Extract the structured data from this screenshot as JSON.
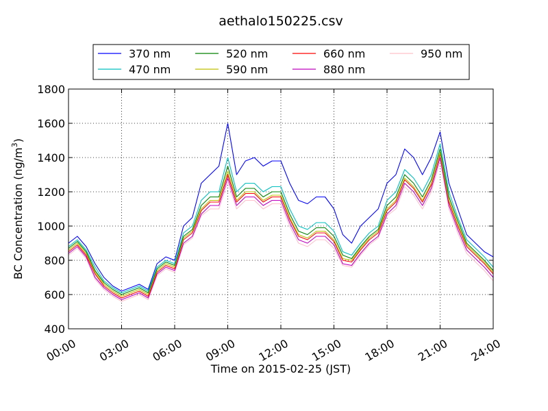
{
  "chart_data": {
    "type": "line",
    "title": "aethalo150225.csv",
    "xlabel": "Time on 2015-02-25 (JST)",
    "ylabel": "BC Concentration (ng/m",
    "ylabel_sup": "3",
    "ylabel_close": ")",
    "xlim": [
      0,
      24
    ],
    "ylim": [
      400,
      1800
    ],
    "x_ticks": [
      0,
      3,
      6,
      9,
      12,
      15,
      18,
      21,
      24
    ],
    "x_tick_labels": [
      "00:00",
      "03:00",
      "06:00",
      "09:00",
      "12:00",
      "15:00",
      "18:00",
      "21:00",
      "24:00"
    ],
    "y_ticks": [
      400,
      600,
      800,
      1000,
      1200,
      1400,
      1600,
      1800
    ],
    "y_tick_labels": [
      "400",
      "600",
      "800",
      "1000",
      "1200",
      "1400",
      "1600",
      "1800"
    ],
    "grid": true,
    "legend_position": "top-outside",
    "x": [
      0.0,
      0.5,
      1.0,
      1.5,
      2.0,
      2.5,
      3.0,
      3.5,
      4.0,
      4.5,
      5.0,
      5.5,
      6.0,
      6.5,
      7.0,
      7.5,
      8.0,
      8.5,
      9.0,
      9.5,
      10.0,
      10.5,
      11.0,
      11.5,
      12.0,
      12.5,
      13.0,
      13.5,
      14.0,
      14.5,
      15.0,
      15.5,
      16.0,
      16.5,
      17.0,
      17.5,
      18.0,
      18.5,
      19.0,
      19.5,
      20.0,
      20.5,
      21.0,
      21.5,
      22.0,
      22.5,
      23.0,
      23.5,
      24.0
    ],
    "series": [
      {
        "name": "370 nm",
        "color": "#0000ff",
        "values": [
          900,
          940,
          880,
          780,
          700,
          650,
          620,
          640,
          660,
          630,
          780,
          820,
          800,
          1000,
          1050,
          1250,
          1300,
          1350,
          1600,
          1300,
          1380,
          1400,
          1350,
          1380,
          1380,
          1250,
          1150,
          1130,
          1170,
          1170,
          1100,
          950,
          900,
          1000,
          1050,
          1100,
          1250,
          1300,
          1450,
          1400,
          1300,
          1400,
          1550,
          1250,
          1100,
          950,
          900,
          850,
          820
        ]
      },
      {
        "name": "470 nm",
        "color": "#00bfbf",
        "values": [
          880,
          920,
          860,
          760,
          680,
          640,
          610,
          630,
          650,
          620,
          760,
          800,
          780,
          960,
          1000,
          1150,
          1200,
          1200,
          1400,
          1200,
          1250,
          1250,
          1200,
          1230,
          1230,
          1100,
          1000,
          980,
          1020,
          1020,
          970,
          850,
          830,
          900,
          960,
          1000,
          1150,
          1200,
          1330,
          1280,
          1200,
          1300,
          1480,
          1200,
          1050,
          920,
          870,
          820,
          760
        ]
      },
      {
        "name": "520 nm",
        "color": "#008000",
        "values": [
          870,
          910,
          850,
          740,
          670,
          630,
          600,
          620,
          640,
          610,
          750,
          790,
          770,
          940,
          980,
          1120,
          1170,
          1170,
          1350,
          1170,
          1220,
          1220,
          1170,
          1200,
          1200,
          1070,
          970,
          950,
          990,
          990,
          940,
          830,
          810,
          880,
          940,
          980,
          1120,
          1170,
          1300,
          1250,
          1170,
          1270,
          1450,
          1170,
          1030,
          900,
          850,
          800,
          740
        ]
      },
      {
        "name": "590 nm",
        "color": "#bfbf00",
        "values": [
          860,
          900,
          840,
          730,
          660,
          620,
          590,
          610,
          630,
          600,
          740,
          780,
          760,
          930,
          970,
          1100,
          1150,
          1150,
          1320,
          1150,
          1200,
          1200,
          1150,
          1180,
          1180,
          1050,
          950,
          930,
          970,
          970,
          920,
          810,
          800,
          870,
          930,
          970,
          1100,
          1150,
          1280,
          1230,
          1150,
          1250,
          1430,
          1150,
          1010,
          890,
          840,
          790,
          730
        ]
      },
      {
        "name": "660 nm",
        "color": "#ff0000",
        "values": [
          850,
          890,
          830,
          720,
          650,
          610,
          580,
          600,
          620,
          590,
          730,
          770,
          750,
          920,
          960,
          1090,
          1140,
          1140,
          1300,
          1140,
          1190,
          1190,
          1140,
          1170,
          1170,
          1040,
          940,
          920,
          960,
          960,
          910,
          800,
          790,
          860,
          920,
          960,
          1090,
          1140,
          1270,
          1220,
          1140,
          1240,
          1420,
          1140,
          1000,
          880,
          830,
          780,
          720
        ]
      },
      {
        "name": "880 nm",
        "color": "#bf00bf",
        "values": [
          840,
          880,
          820,
          700,
          640,
          600,
          570,
          590,
          610,
          580,
          720,
          760,
          740,
          900,
          940,
          1070,
          1120,
          1120,
          1280,
          1120,
          1170,
          1170,
          1120,
          1150,
          1150,
          1020,
          920,
          900,
          940,
          940,
          890,
          780,
          770,
          840,
          900,
          940,
          1070,
          1120,
          1250,
          1200,
          1120,
          1220,
          1400,
          1120,
          980,
          860,
          810,
          760,
          700
        ]
      },
      {
        "name": "950 nm",
        "color": "#ffc0cb",
        "values": [
          830,
          870,
          810,
          690,
          630,
          590,
          560,
          580,
          600,
          570,
          710,
          750,
          730,
          890,
          930,
          1060,
          1100,
          1100,
          1260,
          1100,
          1150,
          1150,
          1100,
          1130,
          1130,
          1000,
          900,
          880,
          920,
          920,
          870,
          770,
          760,
          830,
          890,
          930,
          1060,
          1100,
          1230,
          1180,
          1100,
          1200,
          1380,
          1100,
          960,
          840,
          790,
          740,
          680
        ]
      }
    ]
  }
}
